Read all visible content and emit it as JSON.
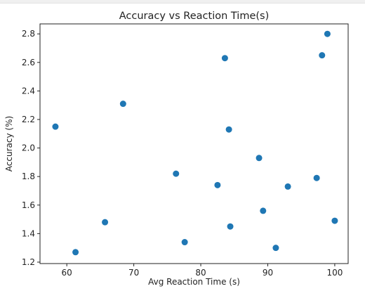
{
  "chart_data": {
    "type": "scatter",
    "title": "Accuracy vs Reaction Time(s)",
    "xlabel": "Avg Reaction Time (s)",
    "ylabel": "Accuracy (%)",
    "xlim": [
      56,
      102
    ],
    "ylim": [
      1.19,
      2.87
    ],
    "xticks": [
      60,
      70,
      80,
      90,
      100
    ],
    "yticks": [
      1.2,
      1.4,
      1.6,
      1.8,
      2.0,
      2.2,
      2.4,
      2.6,
      2.8
    ],
    "grid": false,
    "marker_color": "#1f77b4",
    "points": [
      {
        "x": 58.3,
        "y": 2.15
      },
      {
        "x": 61.3,
        "y": 1.27
      },
      {
        "x": 65.7,
        "y": 1.48
      },
      {
        "x": 68.4,
        "y": 2.31
      },
      {
        "x": 76.3,
        "y": 1.82
      },
      {
        "x": 77.6,
        "y": 1.34
      },
      {
        "x": 82.5,
        "y": 1.74
      },
      {
        "x": 83.6,
        "y": 2.63
      },
      {
        "x": 84.2,
        "y": 2.13
      },
      {
        "x": 84.4,
        "y": 1.45
      },
      {
        "x": 88.7,
        "y": 1.93
      },
      {
        "x": 89.3,
        "y": 1.56
      },
      {
        "x": 91.2,
        "y": 1.3
      },
      {
        "x": 93.0,
        "y": 1.73
      },
      {
        "x": 97.3,
        "y": 1.79
      },
      {
        "x": 98.1,
        "y": 2.65
      },
      {
        "x": 98.9,
        "y": 2.8
      },
      {
        "x": 100.0,
        "y": 1.49
      }
    ]
  }
}
